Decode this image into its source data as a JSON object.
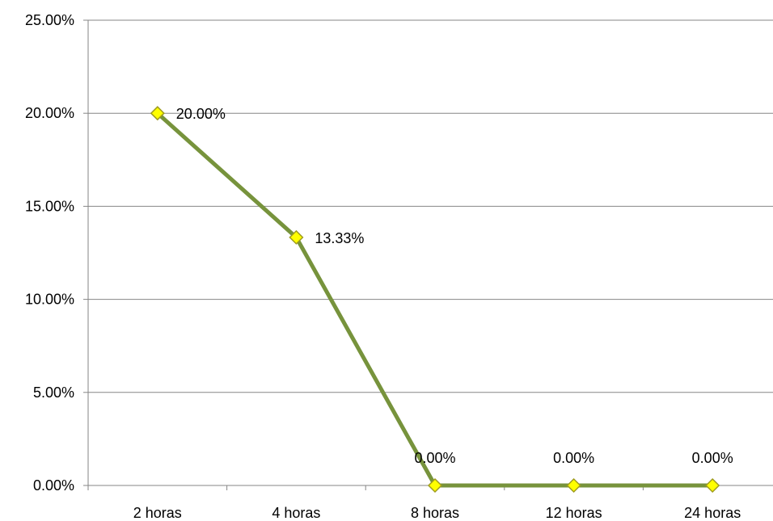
{
  "chart_data": {
    "type": "line",
    "categories": [
      "2 horas",
      "4 horas",
      "8 horas",
      "12 horas",
      "24 horas"
    ],
    "series": [
      {
        "values": [
          20.0,
          13.33,
          0.0,
          0.0,
          0.0
        ]
      }
    ],
    "data_labels": [
      "20.00%",
      "13.33%",
      "0.00%",
      "0.00%",
      "0.00%"
    ],
    "y_ticks": [
      "0.00%",
      "5.00%",
      "10.00%",
      "15.00%",
      "20.00%",
      "25.00%"
    ],
    "ylim": [
      0,
      25
    ],
    "y_tick_step": 5,
    "grid": true,
    "legend": "none",
    "colors": {
      "line": "#77933C",
      "marker_fill": "#FFFF00",
      "marker_stroke": "#9E9B1F",
      "grid": "#868686",
      "axis": "#868686"
    }
  }
}
